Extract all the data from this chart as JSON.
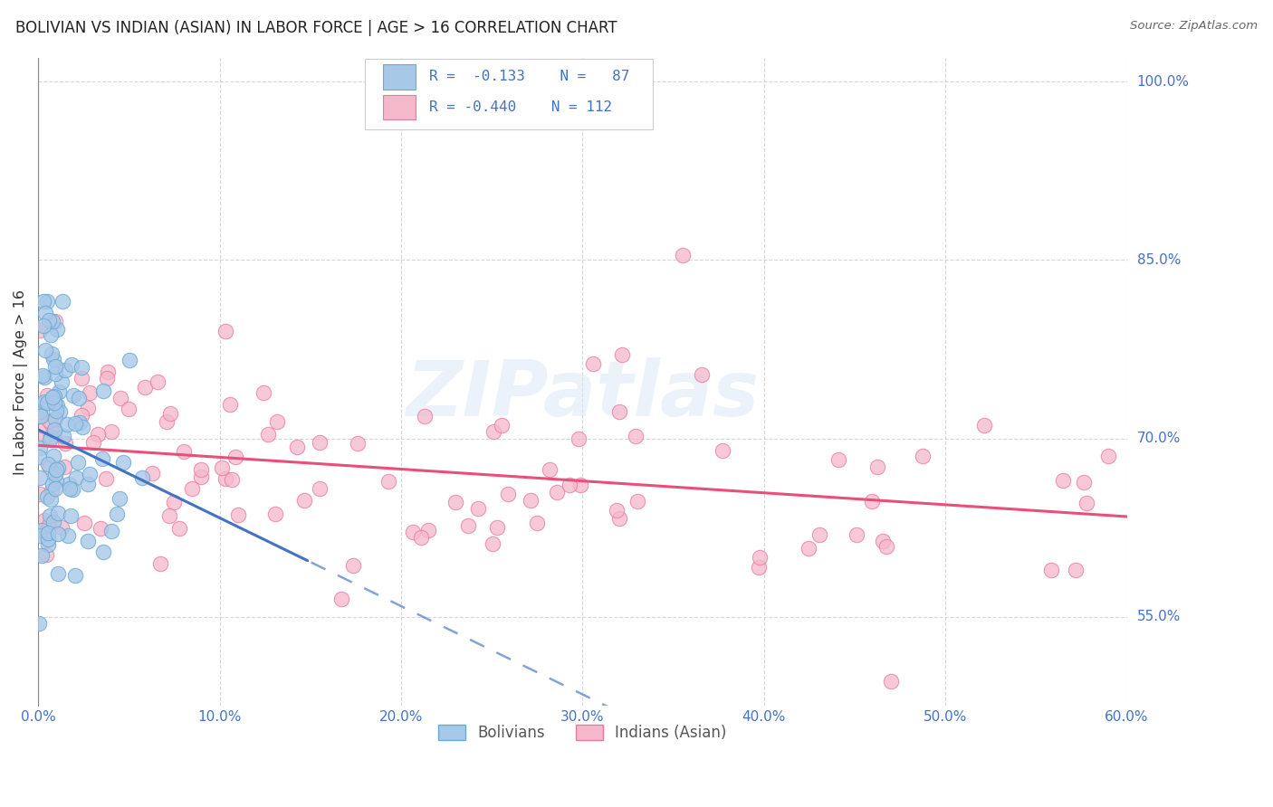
{
  "title": "BOLIVIAN VS INDIAN (ASIAN) IN LABOR FORCE | AGE > 16 CORRELATION CHART",
  "source": "Source: ZipAtlas.com",
  "ylabel": "In Labor Force | Age > 16",
  "ytick_labels": [
    "55.0%",
    "70.0%",
    "85.0%",
    "100.0%"
  ],
  "watermark": "ZIPatlas",
  "bolivians": {
    "color": "#a8c8e8",
    "edge_color": "#6aaad4",
    "line_color": "#4472c4",
    "R": -0.133,
    "N": 87
  },
  "indians": {
    "color": "#f5b8cb",
    "edge_color": "#e87aa0",
    "line_color": "#e8507a",
    "R": -0.44,
    "N": 112
  },
  "xmin": 0.0,
  "xmax": 0.6,
  "ymin": 0.475,
  "ymax": 1.02,
  "yticks": [
    0.55,
    0.7,
    0.85,
    1.0
  ],
  "xticks": [
    0.0,
    0.1,
    0.2,
    0.3,
    0.4,
    0.5,
    0.6
  ]
}
